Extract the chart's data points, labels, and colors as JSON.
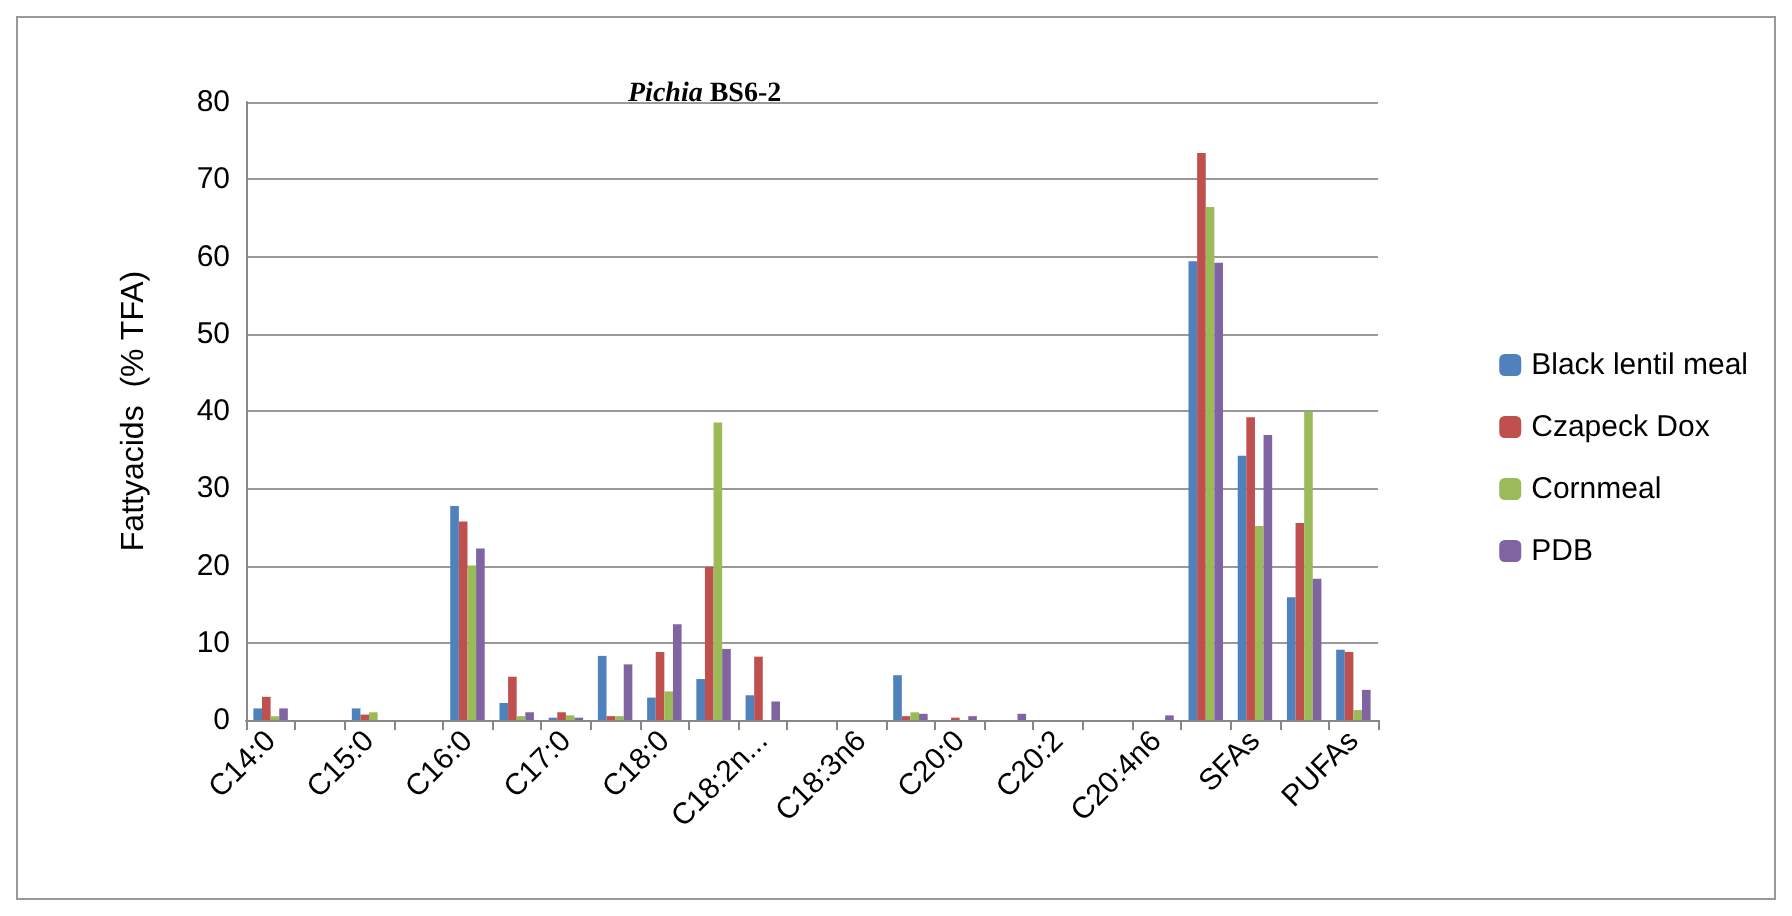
{
  "chart_data": {
    "type": "bar",
    "title": "Pichia BS6-2",
    "ylabel": "Fattyacids  (% TFA)",
    "categories": [
      "C14:0",
      null,
      "C15:0",
      null,
      "C16:0",
      null,
      "C17:0",
      null,
      "C18:0",
      null,
      "C18:2n...",
      null,
      "C18:3n6",
      null,
      "C20:0",
      null,
      "C20:2",
      null,
      "C20:4n6",
      null,
      "SFAs",
      null,
      "PUFAs"
    ],
    "series": [
      {
        "name": "Black lentil meal",
        "color": "#4f81bd",
        "values": [
          1.5,
          null,
          1.5,
          null,
          27.7,
          2.2,
          0.3,
          8.3,
          2.9,
          5.3,
          3.2,
          null,
          null,
          5.8,
          null,
          null,
          null,
          null,
          null,
          59.4,
          34.2,
          15.9,
          9.1
        ]
      },
      {
        "name": "Czapeck Dox",
        "color": "#c0504d",
        "values": [
          3,
          null,
          0.7,
          null,
          25.7,
          5.6,
          1,
          0.5,
          8.8,
          19.8,
          8.2,
          null,
          null,
          0.5,
          0.3,
          null,
          null,
          null,
          null,
          73.4,
          39.2,
          25.5,
          8.8
        ]
      },
      {
        "name": "Cornmeal",
        "color": "#9bbb59",
        "values": [
          0.5,
          null,
          1,
          null,
          20,
          0.5,
          0.6,
          0.5,
          3.7,
          38.5,
          null,
          null,
          null,
          1,
          null,
          null,
          null,
          null,
          null,
          66.4,
          25.1,
          39.9,
          1.3
        ]
      },
      {
        "name": "PDB",
        "color": "#8064a2",
        "values": [
          1.5,
          null,
          null,
          null,
          22.2,
          1,
          0.3,
          7.2,
          12.4,
          9.2,
          2.4,
          null,
          null,
          0.8,
          0.5,
          0.8,
          null,
          null,
          0.6,
          59.2,
          36.9,
          18.3,
          3.9
        ]
      }
    ],
    "ylim": [
      0,
      80
    ],
    "yticks": [
      0,
      10,
      20,
      30,
      40,
      50,
      60,
      70,
      80
    ],
    "grid": "y",
    "legend": "right"
  }
}
